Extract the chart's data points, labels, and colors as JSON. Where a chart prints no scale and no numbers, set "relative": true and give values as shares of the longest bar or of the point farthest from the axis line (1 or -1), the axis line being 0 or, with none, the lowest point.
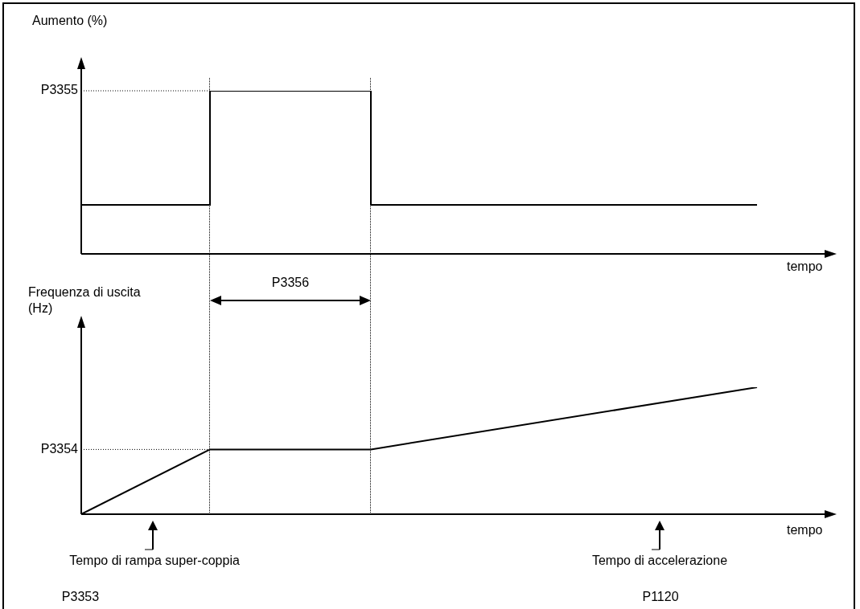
{
  "chart_data": [
    {
      "type": "step",
      "relative": true,
      "ylabel": "Aumento (%)",
      "xlabel": "tempo",
      "categories": [
        null,
        null,
        null,
        null,
        null,
        null,
        null,
        null,
        null,
        null,
        null,
        null,
        null,
        null,
        null,
        null,
        null,
        null,
        null,
        null,
        null,
        null,
        null,
        null
      ],
      "series": [
        {
          "color": "#000000",
          "values": [
            0.3,
            0.3,
            0.3,
            0.3,
            1,
            1,
            1,
            1,
            1,
            0.3,
            0.3,
            0.3,
            0.3,
            0.3,
            0.3,
            0.3,
            0.3,
            0.3,
            0.3,
            0.3,
            0.3,
            0.3,
            null,
            null
          ]
        }
      ],
      "annotations": [
        "P3355"
      ]
    },
    {
      "type": "line",
      "relative": true,
      "ylabel": "Frequenza di uscita (Hz)",
      "xlabel": "tempo",
      "categories": [
        null,
        null,
        null,
        null,
        null,
        null,
        null,
        null,
        null,
        null,
        null,
        null,
        null,
        null,
        null,
        null,
        null,
        null,
        null,
        null,
        null,
        null,
        null,
        null
      ],
      "series": [
        {
          "color": "#000000",
          "values": [
            0,
            null,
            null,
            null,
            0.51,
            null,
            null,
            null,
            null,
            0.51,
            null,
            null,
            null,
            null,
            null,
            null,
            null,
            null,
            null,
            null,
            null,
            1,
            null,
            null
          ]
        }
      ],
      "annotations": [
        "P3354",
        "P3356",
        "Tempo di rampa super-coppia",
        "P3353",
        "Tempo di accelerazione",
        "P1120"
      ]
    }
  ]
}
